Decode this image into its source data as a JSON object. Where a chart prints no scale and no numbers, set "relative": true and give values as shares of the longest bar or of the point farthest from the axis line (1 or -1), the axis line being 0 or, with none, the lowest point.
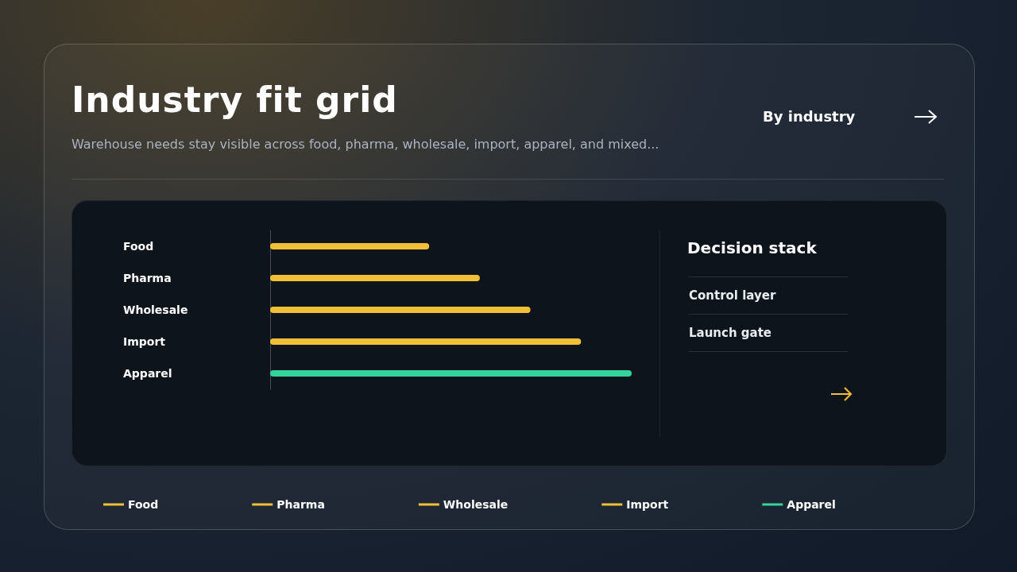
{
  "chart_data": [
    {
      "type": "bar",
      "title": "Industry fit grid",
      "subtitle": "Warehouse needs stay visible across food, pharma, wholesale, import, apparel, and mixed...",
      "annotations": [
        "By industry"
      ],
      "orientation": "horizontal",
      "relative": true,
      "stacked": true,
      "legend": "bottom",
      "categories": [
        "Food",
        "Pharma",
        "Wholesale",
        "Import",
        "Apparel"
      ],
      "series": [
        {
          "name": "Food",
          "color": "#f2c037",
          "values": [
            0.44,
            null,
            null,
            null,
            null
          ]
        },
        {
          "name": "Pharma",
          "color": "#f2c037",
          "values": [
            null,
            0.58,
            null,
            null,
            null
          ]
        },
        {
          "name": "Wholesale",
          "color": "#f2c037",
          "values": [
            null,
            null,
            0.72,
            null,
            null
          ]
        },
        {
          "name": "Import",
          "color": "#f2c037",
          "values": [
            null,
            null,
            null,
            0.86,
            null
          ]
        },
        {
          "name": "Apparel",
          "color": "#34d399",
          "values": [
            null,
            null,
            null,
            null,
            1
          ]
        }
      ]
    },
    {
      "type": "other",
      "title": "Decision stack",
      "annotations": [
        "Control layer",
        "Launch gate"
      ]
    }
  ]
}
